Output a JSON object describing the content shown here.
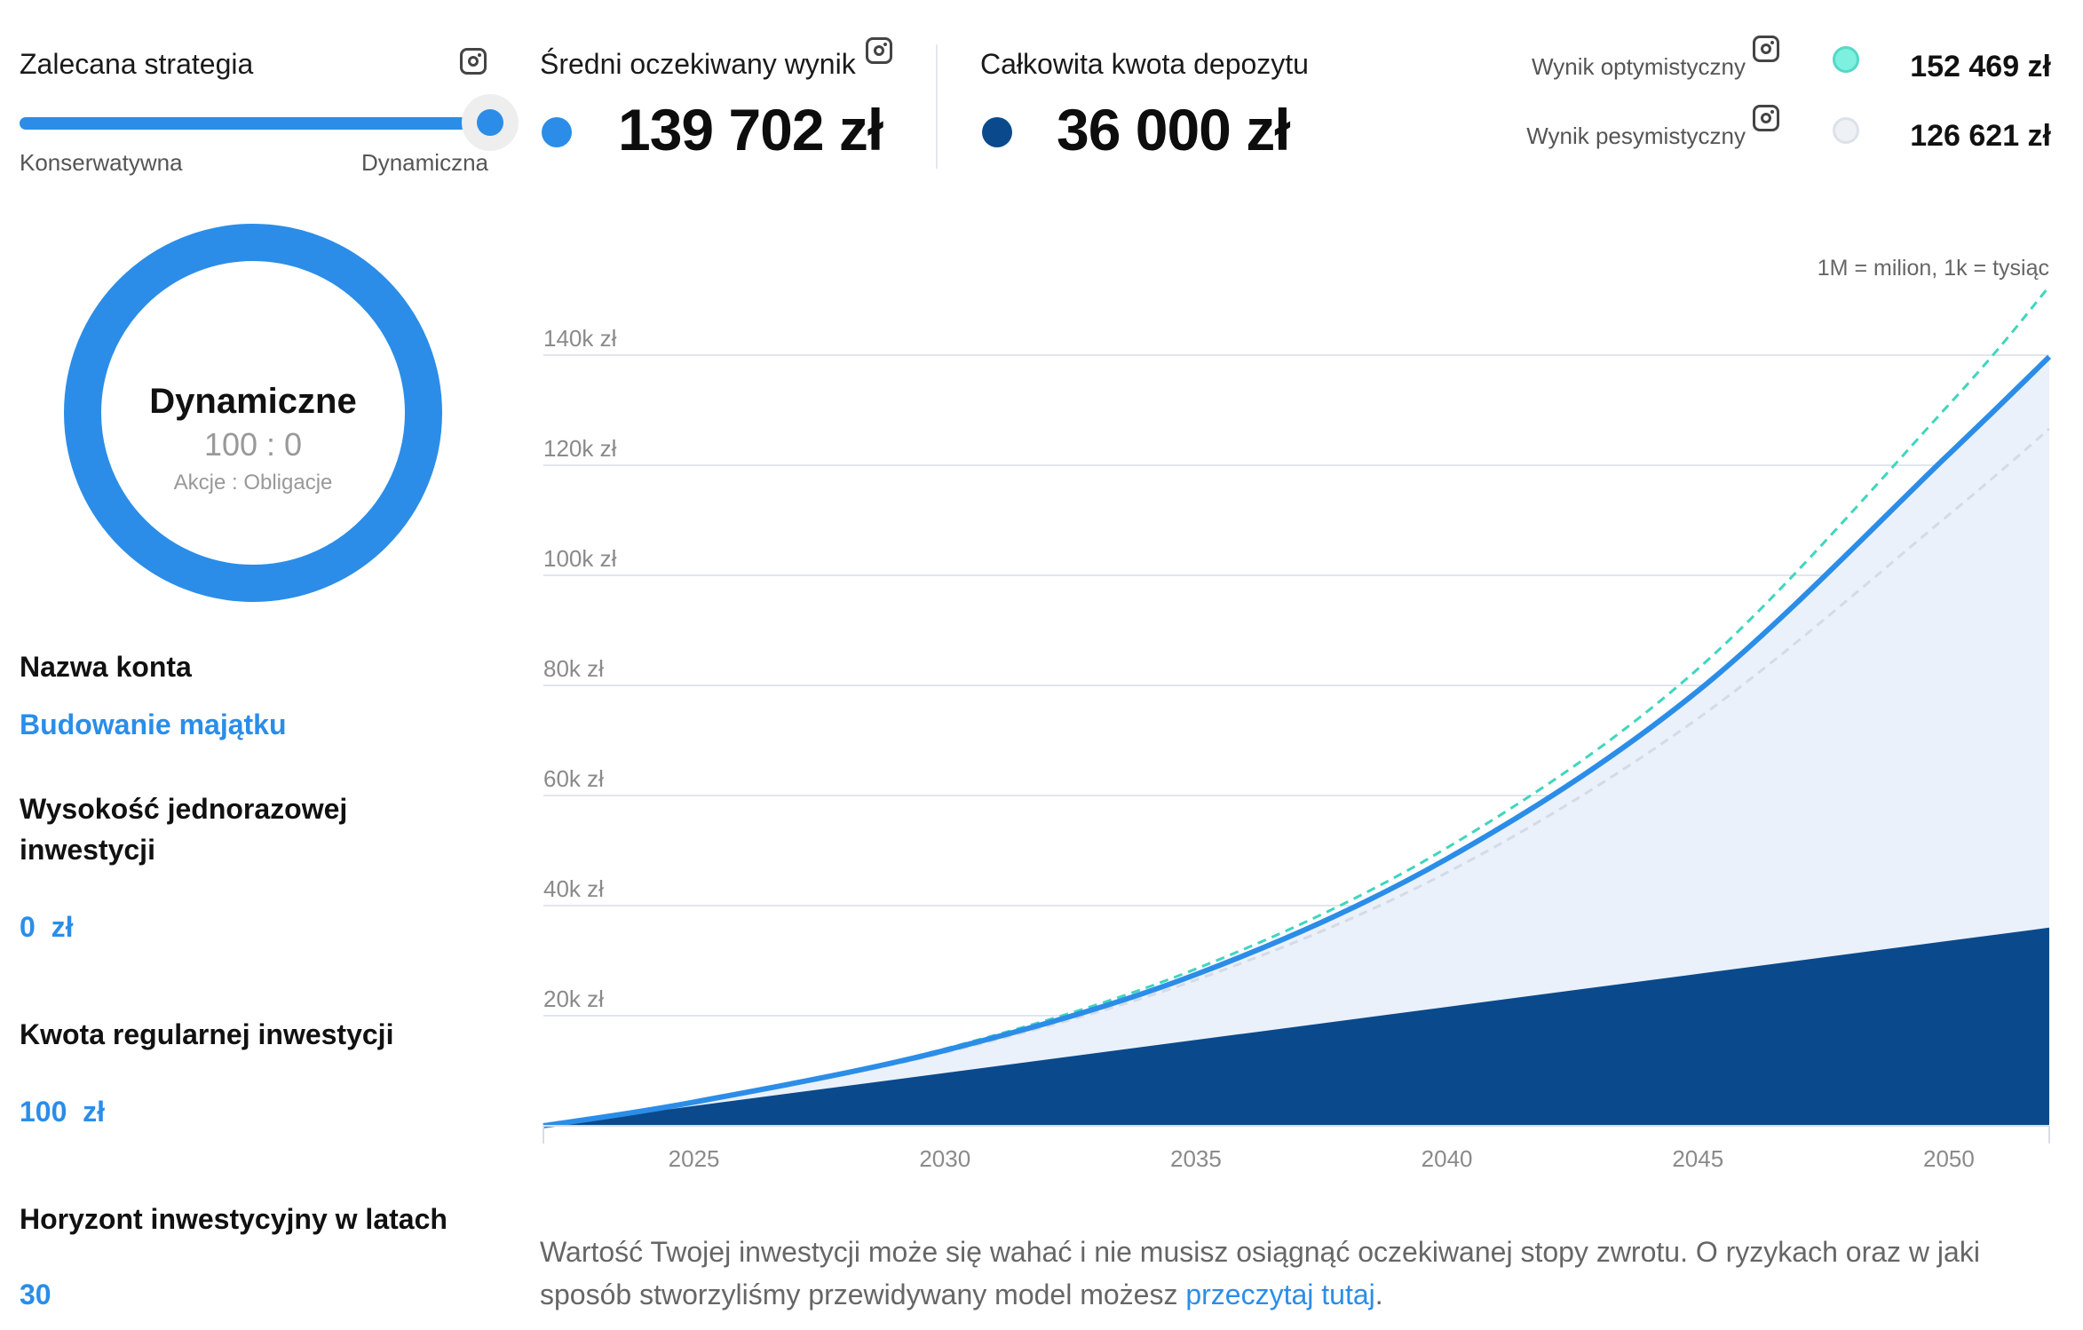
{
  "strategy": {
    "label": "Zalecana strategia",
    "min_label": "Konserwatywna",
    "max_label": "Dynamiczna",
    "level": 1.0
  },
  "average": {
    "label": "Średni oczekiwany wynik",
    "value": "139 702 zł",
    "color": "#2b8de8"
  },
  "deposit": {
    "label": "Całkowita kwota depozytu",
    "value": "36 000 zł",
    "color": "#0a4a8c"
  },
  "optimistic": {
    "label": "Wynik optymistyczny",
    "value": "152 469 zł",
    "color": "#7ef0e0"
  },
  "pessimistic": {
    "label": "Wynik pesymistyczny",
    "value": "126 621 zł",
    "color": "#e6ebf3"
  },
  "allocation": {
    "title": "Dynamiczne",
    "ratio": "100 : 0",
    "caption": "Akcje : Obligacje",
    "color": "#2b8de8"
  },
  "sidebar": {
    "account_name_label": "Nazwa konta",
    "account_name_value": "Budowanie majątku",
    "lump_sum_label": "Wysokość jednorazowej inwestycji",
    "lump_sum_value": "0  zł",
    "regular_label": "Kwota regularnej inwestycji",
    "regular_value": "100  zł",
    "horizon_label": "Horyzont inwestycyjny w latach",
    "horizon_value": "30"
  },
  "chart_note": "1M = milion, 1k = tysiąc",
  "footer": {
    "text": "Wartość Twojej inwestycji może się wahać i nie musisz osiągnąć oczekiwanej stopy zwrotu. O ryzykach oraz w jaki sposób stworzyliśmy przewidywany model możesz ",
    "link": "przeczytaj tutaj",
    "end": "."
  },
  "chart_data": {
    "type": "area",
    "x": [
      2022,
      2025,
      2030,
      2035,
      2040,
      2045,
      2050,
      2052
    ],
    "xlim": [
      2022,
      2052
    ],
    "ylim": [
      0,
      140000
    ],
    "x_ticks": [
      "2025",
      "2030",
      "2035",
      "2040",
      "2045",
      "2050"
    ],
    "y_ticks": [
      "20k zł",
      "40k zł",
      "60k zł",
      "80k zł",
      "100k zł",
      "120k zł",
      "140k zł"
    ],
    "y_tick_values": [
      20000,
      40000,
      60000,
      80000,
      100000,
      120000,
      140000
    ],
    "grid": true,
    "series": [
      {
        "name": "Wynik optymistyczny",
        "values": [
          0,
          4400,
          14000,
          28500,
          50500,
          83000,
          131000,
          152469
        ]
      },
      {
        "name": "Średni oczekiwany wynik",
        "values": [
          0,
          4300,
          13700,
          27500,
          48500,
          79000,
          122000,
          139702
        ]
      },
      {
        "name": "Wynik pesymistyczny",
        "values": [
          0,
          4200,
          13300,
          26500,
          46000,
          74000,
          111000,
          126621
        ]
      },
      {
        "name": "Całkowita kwota depozytu",
        "values": [
          0,
          3600,
          9600,
          15600,
          21600,
          27600,
          33600,
          36000
        ]
      }
    ]
  }
}
